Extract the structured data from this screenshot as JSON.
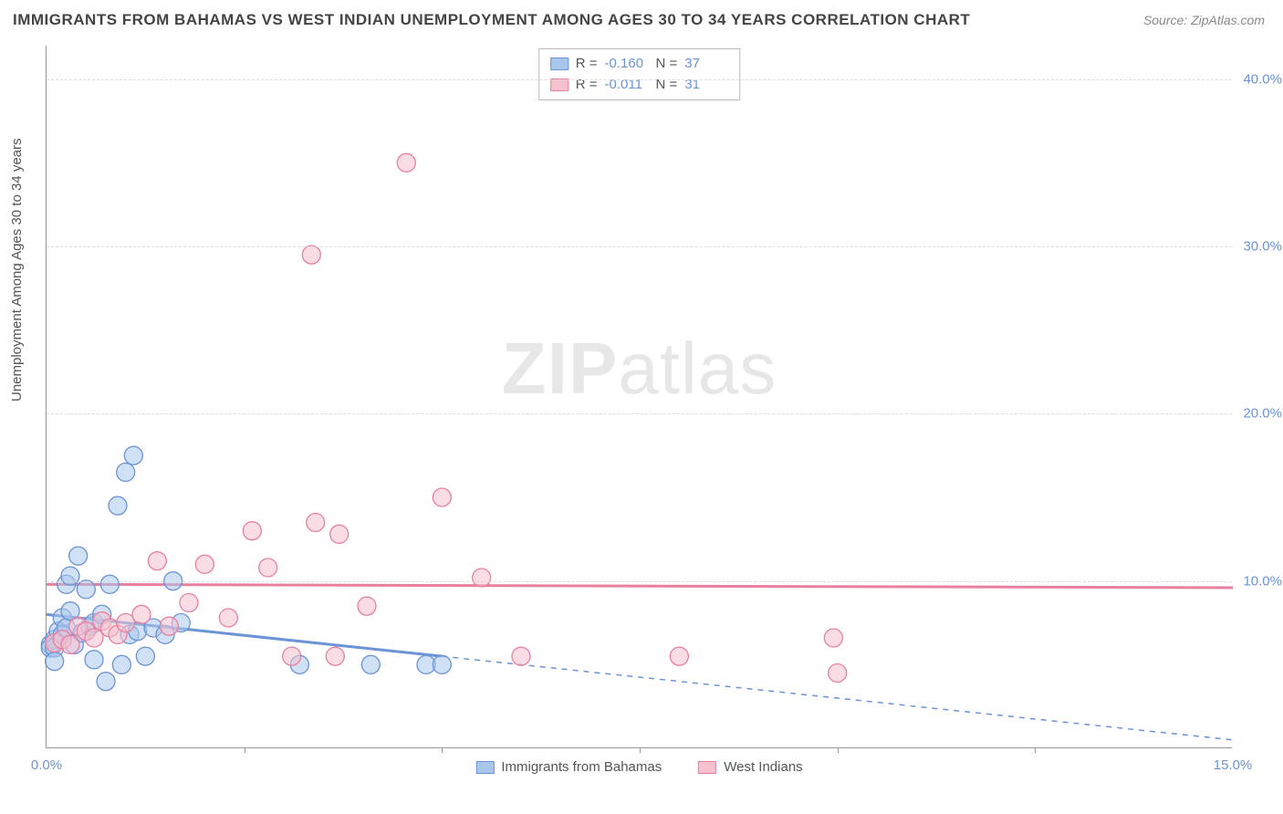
{
  "title": "IMMIGRANTS FROM BAHAMAS VS WEST INDIAN UNEMPLOYMENT AMONG AGES 30 TO 34 YEARS CORRELATION CHART",
  "source": "Source: ZipAtlas.com",
  "y_axis_label": "Unemployment Among Ages 30 to 34 years",
  "watermark_bold": "ZIP",
  "watermark_rest": "atlas",
  "chart": {
    "type": "scatter",
    "xlim": [
      0,
      15
    ],
    "ylim": [
      0,
      42
    ],
    "x_ticks": [
      0.0,
      15.0
    ],
    "x_tick_labels": [
      "0.0%",
      "15.0%"
    ],
    "x_minor_ticks": [
      2.5,
      5.0,
      7.5,
      10.0,
      12.5
    ],
    "y_ticks": [
      10.0,
      20.0,
      30.0,
      40.0
    ],
    "y_tick_labels": [
      "10.0%",
      "20.0%",
      "30.0%",
      "40.0%"
    ],
    "grid_color": "#dddddd",
    "axis_color": "#999999",
    "background_color": "#ffffff",
    "marker_radius": 10,
    "marker_opacity": 0.55,
    "series": [
      {
        "name": "Immigrants from Bahamas",
        "color_fill": "#a9c7ec",
        "color_stroke": "#6b93d6",
        "r_label": "R =",
        "r_value": "-0.160",
        "n_label": "N =",
        "n_value": "37",
        "trend": {
          "x1": 0,
          "y1": 8.0,
          "x2": 15,
          "y2": 0.5,
          "solid_until_x": 5.0
        },
        "points": [
          [
            0.05,
            6.2
          ],
          [
            0.05,
            6.0
          ],
          [
            0.1,
            6.5
          ],
          [
            0.1,
            6.0
          ],
          [
            0.1,
            5.2
          ],
          [
            0.15,
            7.0
          ],
          [
            0.2,
            7.8
          ],
          [
            0.2,
            6.8
          ],
          [
            0.25,
            9.8
          ],
          [
            0.25,
            7.2
          ],
          [
            0.3,
            10.3
          ],
          [
            0.3,
            8.2
          ],
          [
            0.35,
            6.2
          ],
          [
            0.4,
            11.5
          ],
          [
            0.45,
            6.9
          ],
          [
            0.5,
            9.5
          ],
          [
            0.55,
            7.3
          ],
          [
            0.6,
            5.3
          ],
          [
            0.6,
            7.5
          ],
          [
            0.7,
            8.0
          ],
          [
            0.75,
            4.0
          ],
          [
            0.8,
            9.8
          ],
          [
            0.9,
            14.5
          ],
          [
            0.95,
            5.0
          ],
          [
            1.0,
            16.5
          ],
          [
            1.05,
            6.8
          ],
          [
            1.1,
            17.5
          ],
          [
            1.15,
            7.0
          ],
          [
            1.25,
            5.5
          ],
          [
            1.35,
            7.2
          ],
          [
            1.5,
            6.8
          ],
          [
            1.6,
            10.0
          ],
          [
            1.7,
            7.5
          ],
          [
            3.2,
            5.0
          ],
          [
            4.1,
            5.0
          ],
          [
            4.8,
            5.0
          ],
          [
            5.0,
            5.0
          ]
        ]
      },
      {
        "name": "West Indians",
        "color_fill": "#f5c1cd",
        "color_stroke": "#e97f9e",
        "r_label": "R =",
        "r_value": "-0.011",
        "n_label": "N =",
        "n_value": "31",
        "trend": {
          "x1": 0,
          "y1": 9.8,
          "x2": 15,
          "y2": 9.6,
          "solid_until_x": 15
        },
        "points": [
          [
            0.1,
            6.3
          ],
          [
            0.2,
            6.5
          ],
          [
            0.3,
            6.2
          ],
          [
            0.4,
            7.3
          ],
          [
            0.5,
            7.0
          ],
          [
            0.6,
            6.6
          ],
          [
            0.7,
            7.6
          ],
          [
            0.8,
            7.2
          ],
          [
            0.9,
            6.8
          ],
          [
            1.0,
            7.5
          ],
          [
            1.2,
            8.0
          ],
          [
            1.4,
            11.2
          ],
          [
            1.55,
            7.3
          ],
          [
            1.8,
            8.7
          ],
          [
            2.0,
            11.0
          ],
          [
            2.3,
            7.8
          ],
          [
            2.6,
            13.0
          ],
          [
            2.8,
            10.8
          ],
          [
            3.1,
            5.5
          ],
          [
            3.35,
            29.5
          ],
          [
            3.4,
            13.5
          ],
          [
            3.65,
            5.5
          ],
          [
            3.7,
            12.8
          ],
          [
            4.05,
            8.5
          ],
          [
            4.55,
            35.0
          ],
          [
            5.0,
            15.0
          ],
          [
            5.5,
            10.2
          ],
          [
            6.0,
            5.5
          ],
          [
            8.0,
            5.5
          ],
          [
            9.95,
            6.6
          ],
          [
            10.0,
            4.5
          ]
        ]
      }
    ],
    "bottom_legend": [
      {
        "label": "Immigrants from Bahamas",
        "fill": "#a9c7ec",
        "stroke": "#6b93d6"
      },
      {
        "label": "West Indians",
        "fill": "#f5c1cd",
        "stroke": "#e97f9e"
      }
    ]
  }
}
